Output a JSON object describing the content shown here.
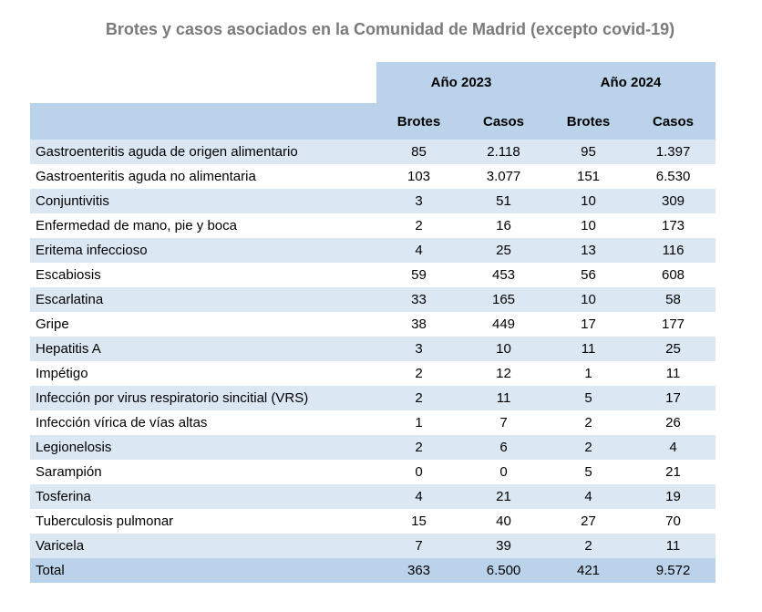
{
  "title": "Brotes y casos asociados en la Comunidad de Madrid (excepto covid-19)",
  "years": [
    "Año 2023",
    "Año 2024"
  ],
  "columns": [
    "Brotes",
    "Casos",
    "Brotes",
    "Casos"
  ],
  "rows": [
    {
      "name": "Gastroenteritis aguda de origen alimentario",
      "b23": "85",
      "c23": "2.118",
      "b24": "95",
      "c24": "1.397"
    },
    {
      "name": "Gastroenteritis aguda no alimentaria",
      "b23": "103",
      "c23": "3.077",
      "b24": "151",
      "c24": "6.530"
    },
    {
      "name": "Conjuntivitis",
      "b23": "3",
      "c23": "51",
      "b24": "10",
      "c24": "309"
    },
    {
      "name": "Enfermedad de mano, pie y boca",
      "b23": "2",
      "c23": "16",
      "b24": "10",
      "c24": "173"
    },
    {
      "name": "Eritema infeccioso",
      "b23": "4",
      "c23": "25",
      "b24": "13",
      "c24": "116"
    },
    {
      "name": "Escabiosis",
      "b23": "59",
      "c23": "453",
      "b24": "56",
      "c24": "608"
    },
    {
      "name": "Escarlatina",
      "b23": "33",
      "c23": "165",
      "b24": "10",
      "c24": "58"
    },
    {
      "name": "Gripe",
      "b23": "38",
      "c23": "449",
      "b24": "17",
      "c24": "177"
    },
    {
      "name": "Hepatitis A",
      "b23": "3",
      "c23": "10",
      "b24": "11",
      "c24": "25"
    },
    {
      "name": "Impétigo",
      "b23": "2",
      "c23": "12",
      "b24": "1",
      "c24": "11"
    },
    {
      "name": "Infección por virus respiratorio sincitial (VRS)",
      "b23": "2",
      "c23": "11",
      "b24": "5",
      "c24": "17"
    },
    {
      "name": "Infección vírica de vías altas",
      "b23": "1",
      "c23": "7",
      "b24": "2",
      "c24": "26"
    },
    {
      "name": "Legionelosis",
      "b23": "2",
      "c23": "6",
      "b24": "2",
      "c24": "4"
    },
    {
      "name": "Sarampión",
      "b23": "0",
      "c23": "0",
      "b24": "5",
      "c24": "21"
    },
    {
      "name": "Tosferina",
      "b23": "4",
      "c23": "21",
      "b24": "4",
      "c24": "19"
    },
    {
      "name": "Tuberculosis pulmonar",
      "b23": "15",
      "c23": "40",
      "b24": "27",
      "c24": "70"
    },
    {
      "name": "Varicela",
      "b23": "7",
      "c23": "39",
      "b24": "2",
      "c24": "11"
    }
  ],
  "total": {
    "name": "Total",
    "b23": "363",
    "c23": "6.500",
    "b24": "421",
    "c24": "9.572"
  }
}
